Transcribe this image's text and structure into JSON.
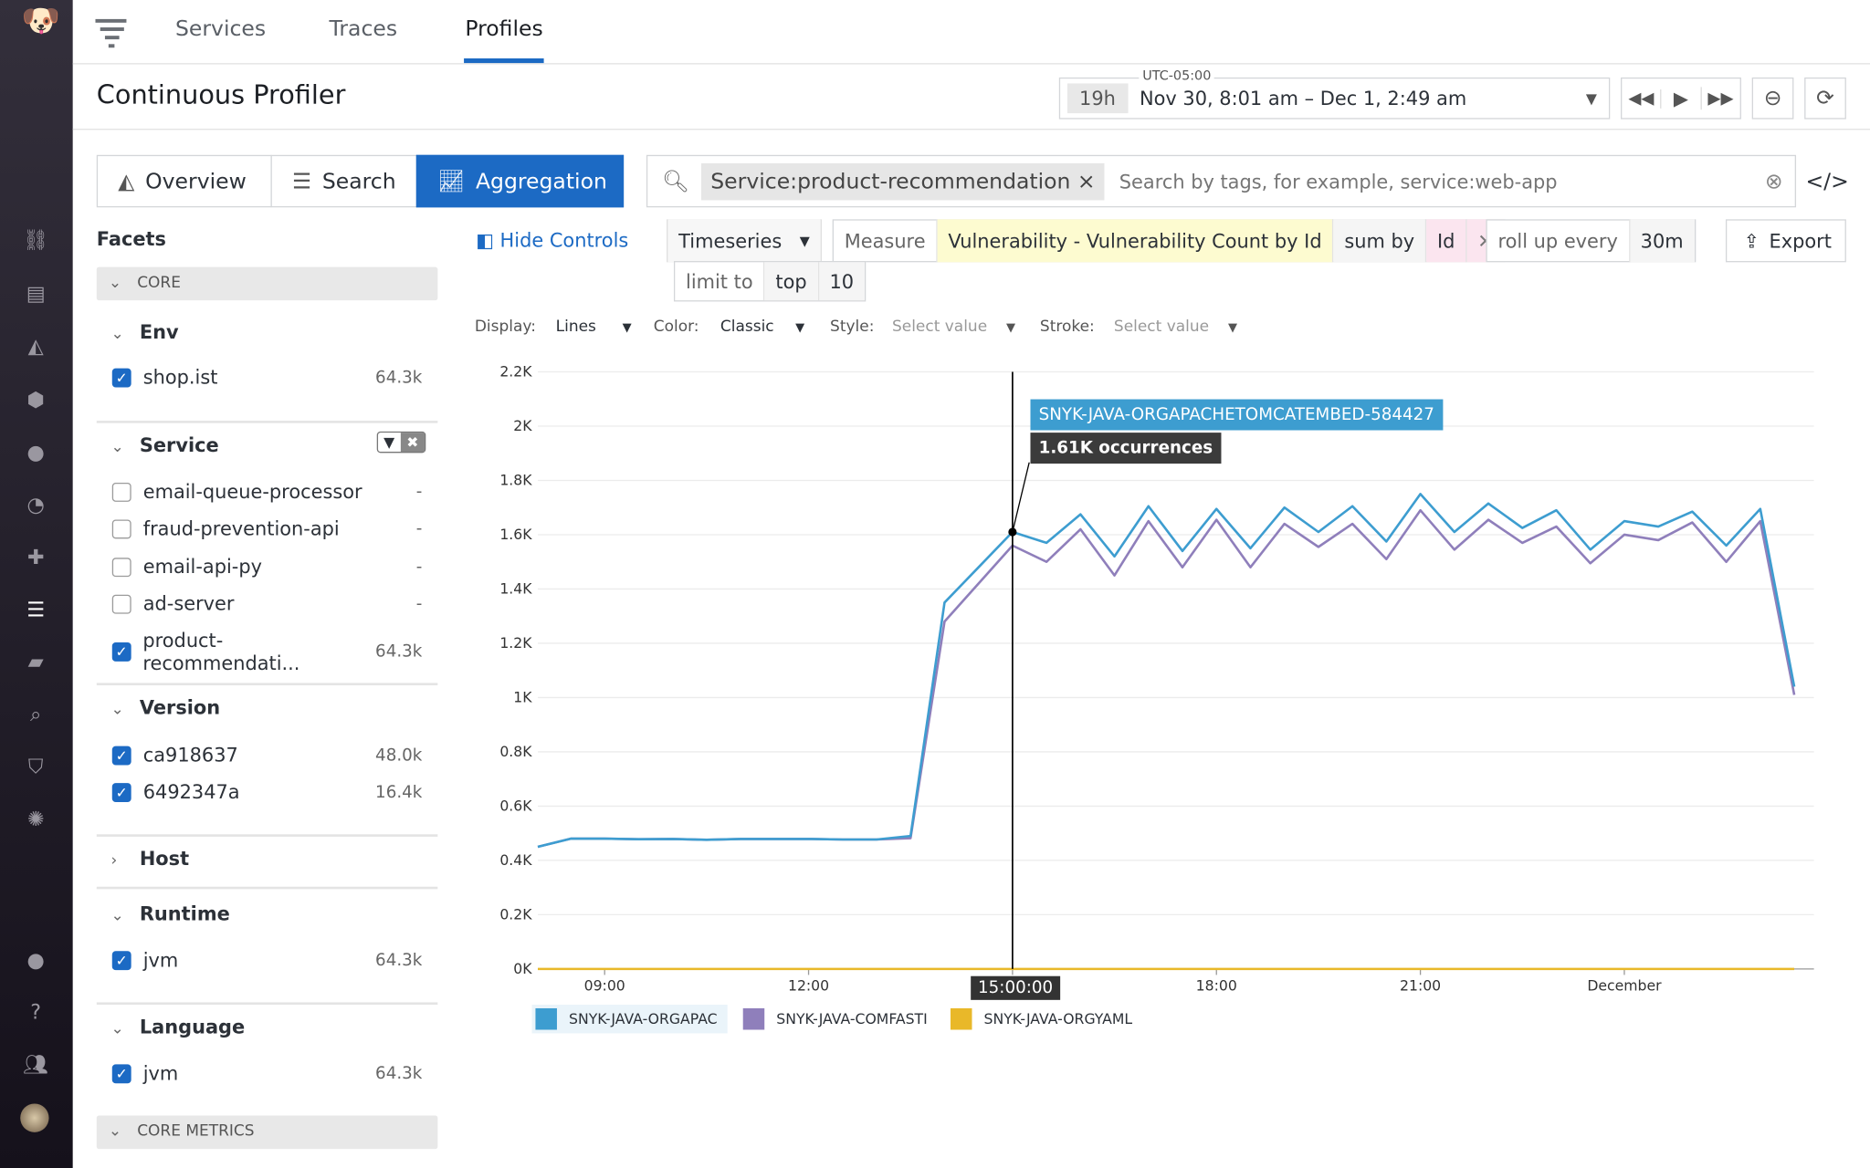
{
  "nav": {
    "icons": [
      "binoculars-icon",
      "list-icon",
      "chart-area-icon",
      "hexagons-icon",
      "alert-icon",
      "gauge-icon",
      "puzzle-icon",
      "apm-icon",
      "notebook-icon",
      "log-search-icon",
      "shield-icon",
      "network-icon",
      "chat-icon",
      "help-icon",
      "team-icon"
    ],
    "active_color": "#ffffff"
  },
  "topnav": {
    "tabs": [
      "Services",
      "Traces",
      "Profiles"
    ],
    "active": "Profiles"
  },
  "header": {
    "title": "Continuous Profiler",
    "timezone": "UTC-05:00",
    "range_badge": "19h",
    "range": "Nov 30, 8:01 am – Dec 1, 2:49 am"
  },
  "views": {
    "items": [
      "Overview",
      "Search",
      "Aggregation"
    ],
    "active": "Aggregation"
  },
  "search": {
    "tag": "Service:product-recommendation",
    "placeholder": "Search by tags, for example, service:web-app"
  },
  "query": {
    "viz": "Timeseries",
    "measure_label": "Measure",
    "measure": "Vulnerability - Vulnerability Count by Id",
    "sum_by": "sum by",
    "group": "Id",
    "rollup_label": "roll up every",
    "rollup": "30m",
    "limit_label": "limit to",
    "limit_dir": "top",
    "limit": "10",
    "export": "Export",
    "hide_controls": "Hide Controls"
  },
  "display": {
    "display_label": "Display:",
    "display": "Lines",
    "color_label": "Color:",
    "color": "Classic",
    "style_label": "Style:",
    "style": "Select value",
    "stroke_label": "Stroke:",
    "stroke": "Select value"
  },
  "facets": {
    "title": "Facets",
    "core": "CORE",
    "core_metrics": "CORE METRICS",
    "env": {
      "label": "Env",
      "items": [
        {
          "name": "shop.ist",
          "count": "64.3k",
          "checked": true
        }
      ]
    },
    "service": {
      "label": "Service",
      "items": [
        {
          "name": "email-queue-processor",
          "count": "-",
          "checked": false
        },
        {
          "name": "fraud-prevention-api",
          "count": "-",
          "checked": false
        },
        {
          "name": "email-api-py",
          "count": "-",
          "checked": false
        },
        {
          "name": "ad-server",
          "count": "-",
          "checked": false
        },
        {
          "name": "product-recommendati...",
          "count": "64.3k",
          "checked": true
        }
      ]
    },
    "version": {
      "label": "Version",
      "items": [
        {
          "name": "ca918637",
          "count": "48.0k",
          "checked": true
        },
        {
          "name": "6492347a",
          "count": "16.4k",
          "checked": true
        }
      ]
    },
    "host": {
      "label": "Host"
    },
    "runtime": {
      "label": "Runtime",
      "items": [
        {
          "name": "jvm",
          "count": "64.3k",
          "checked": true
        }
      ]
    },
    "language": {
      "label": "Language",
      "items": [
        {
          "name": "jvm",
          "count": "64.3k",
          "checked": true
        }
      ]
    }
  },
  "chart_data": {
    "type": "line",
    "ylim": [
      0,
      2200
    ],
    "yticks": [
      "0K",
      "0.2K",
      "0.4K",
      "0.6K",
      "0.8K",
      "1K",
      "1.2K",
      "1.4K",
      "1.6K",
      "1.8K",
      "2K",
      "2.2K"
    ],
    "xticks": [
      "09:00",
      "12:00",
      "15:00",
      "18:00",
      "21:00",
      "December"
    ],
    "grid": true,
    "legend": "bottom-left",
    "x": [
      "08:01",
      "08:30",
      "09:00",
      "09:30",
      "10:00",
      "10:30",
      "11:00",
      "11:30",
      "12:00",
      "12:30",
      "13:00",
      "13:30",
      "14:00",
      "14:30",
      "15:00",
      "15:30",
      "16:00",
      "16:30",
      "17:00",
      "17:30",
      "18:00",
      "18:30",
      "19:00",
      "19:30",
      "20:00",
      "20:30",
      "21:00",
      "21:30",
      "22:00",
      "22:30",
      "23:00",
      "23:30",
      "00:00",
      "00:30",
      "01:00",
      "01:30",
      "02:00",
      "02:30"
    ],
    "series": [
      {
        "name": "SNYK-JAVA-ORGAPAC",
        "color": "#3d9dd0",
        "values": [
          450,
          480,
          480,
          478,
          479,
          476,
          479,
          479,
          479,
          477,
          477,
          490,
          1350,
          1480,
          1610,
          1570,
          1675,
          1520,
          1705,
          1540,
          1695,
          1550,
          1700,
          1610,
          1705,
          1575,
          1750,
          1610,
          1715,
          1625,
          1690,
          1545,
          1650,
          1630,
          1685,
          1560,
          1695,
          1040
        ]
      },
      {
        "name": "SNYK-JAVA-COMFASTI",
        "color": "#8f7fbb",
        "values": [
          450,
          480,
          480,
          478,
          479,
          476,
          479,
          479,
          479,
          477,
          477,
          482,
          1280,
          1420,
          1560,
          1500,
          1620,
          1450,
          1650,
          1480,
          1655,
          1480,
          1640,
          1555,
          1640,
          1510,
          1690,
          1545,
          1655,
          1570,
          1630,
          1495,
          1600,
          1580,
          1645,
          1500,
          1650,
          1010
        ]
      },
      {
        "name": "SNYK-JAVA-ORGYAML",
        "color": "#e9b829",
        "values": [
          0,
          0,
          0,
          0,
          0,
          0,
          0,
          0,
          0,
          0,
          0,
          0,
          0,
          0,
          0,
          0,
          0,
          0,
          0,
          0,
          0,
          0,
          0,
          0,
          0,
          0,
          0,
          0,
          0,
          0,
          0,
          0,
          0,
          0,
          0,
          0,
          0,
          0
        ]
      }
    ],
    "tooltip": {
      "series": "SNYK-JAVA-ORGAPACHETOMCATEMBED-584427",
      "value": "1.61K occurrences",
      "time": "15:00:00",
      "x": "15:00"
    }
  }
}
